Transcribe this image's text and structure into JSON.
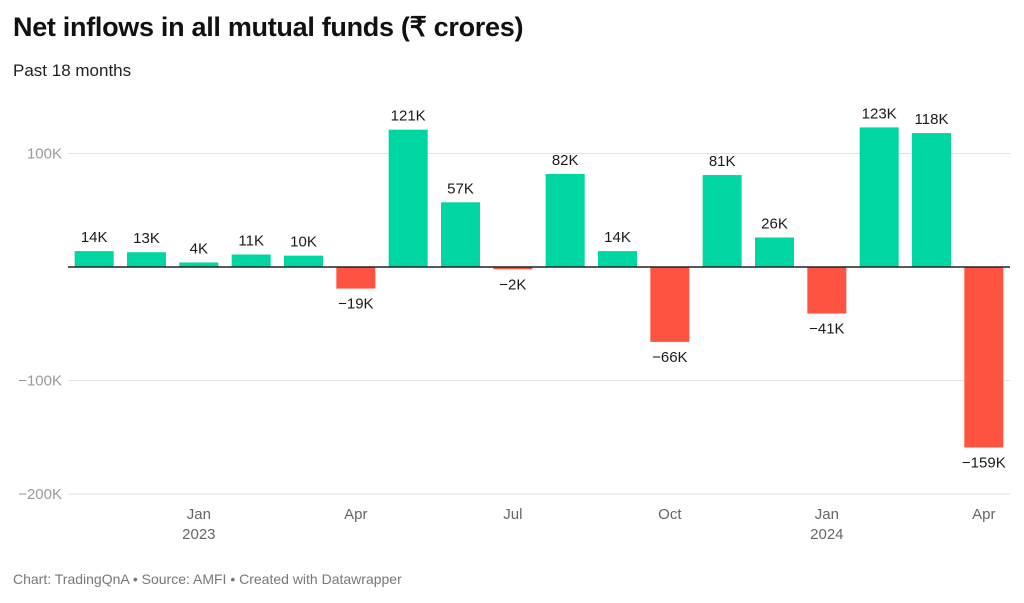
{
  "chart_data": {
    "type": "bar",
    "title": "Net inflows in all mutual funds (₹ crores)",
    "subtitle": "Past 18 months",
    "xlabel": "",
    "ylabel": "",
    "ylim": [
      -200000,
      120000
    ],
    "yticks": [
      {
        "value": 100000,
        "label": "100K"
      },
      {
        "value": -100000,
        "label": "−100K"
      },
      {
        "value": -200000,
        "label": "−200K"
      }
    ],
    "grid": true,
    "categories": [
      "Nov 2022",
      "Dec 2022",
      "Jan 2023",
      "Feb 2023",
      "Mar 2023",
      "Apr 2023",
      "May 2023",
      "Jun 2023",
      "Jul 2023",
      "Aug 2023",
      "Sep 2023",
      "Oct 2023",
      "Nov 2023",
      "Dec 2023",
      "Jan 2024",
      "Feb 2024",
      "Mar 2024",
      "Apr 2024"
    ],
    "values": [
      14000,
      13000,
      4000,
      11000,
      10000,
      -19000,
      121000,
      57000,
      -2000,
      82000,
      14000,
      -66000,
      81000,
      26000,
      -41000,
      123000,
      118000,
      -159000
    ],
    "value_labels": [
      "14K",
      "13K",
      "4K",
      "11K",
      "10K",
      "−19K",
      "121K",
      "57K",
      "−2K",
      "82K",
      "14K",
      "−66K",
      "81K",
      "26K",
      "−41K",
      "123K",
      "118K",
      "−159K"
    ],
    "xticks": [
      {
        "index": 2,
        "label": "Jan",
        "sublabel": "2023"
      },
      {
        "index": 5,
        "label": "Apr",
        "sublabel": ""
      },
      {
        "index": 8,
        "label": "Jul",
        "sublabel": ""
      },
      {
        "index": 11,
        "label": "Oct",
        "sublabel": ""
      },
      {
        "index": 14,
        "label": "Jan",
        "sublabel": "2024"
      },
      {
        "index": 17,
        "label": "Apr",
        "sublabel": ""
      }
    ],
    "colors": {
      "positive": "#00d6a2",
      "negative": "#ff5341"
    },
    "legend": "none"
  },
  "footer": "Chart: TradingQnA • Source: AMFI • Created with Datawrapper"
}
